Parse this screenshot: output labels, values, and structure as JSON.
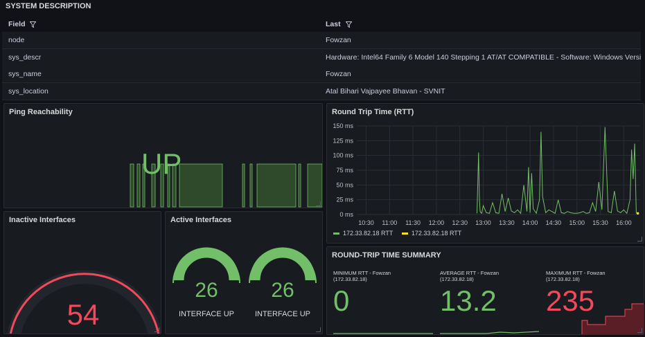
{
  "system": {
    "title": "SYSTEM DESCRIPTION",
    "col_field": "Field",
    "col_last": "Last",
    "rows": [
      {
        "field": "node",
        "last": "Fowzan"
      },
      {
        "field": "sys_descr",
        "last": "Hardware: Intel64 Family 6 Model 140 Stepping 1 AT/AT COMPATIBLE - Software: Windows Versi"
      },
      {
        "field": "sys_name",
        "last": "Fowzan"
      },
      {
        "field": "sys_location",
        "last": "Atal Bihari Vajpayee Bhavan - SVNIT"
      }
    ]
  },
  "ping": {
    "title": "Ping Reachability",
    "value": "UP",
    "color": "#73bf69"
  },
  "inactive": {
    "title": "Inactive Interfaces",
    "value": "54",
    "color": "#f2495c",
    "fraction": 0.98
  },
  "active": {
    "title": "Active Interfaces",
    "gauges": [
      {
        "value": "26",
        "label": "INTERFACE UP",
        "fraction": 1.0
      },
      {
        "value": "26",
        "label": "INTERFACE UP",
        "fraction": 1.0
      }
    ],
    "color": "#73bf69"
  },
  "rtt": {
    "title": "Round Trip Time (RTT)",
    "legend": [
      {
        "name": "172.33.82.18 RTT",
        "color": "#73bf69"
      },
      {
        "name": "172.33.82.18 RTT",
        "color": "#fade2a"
      }
    ]
  },
  "chart_data": {
    "type": "line",
    "ylim": [
      0,
      150
    ],
    "yticks": [
      "0 ms",
      "25 ms",
      "50 ms",
      "75 ms",
      "100 ms",
      "125 ms",
      "150 ms"
    ],
    "xticks": [
      "10:30",
      "11:00",
      "11:30",
      "12:00",
      "12:30",
      "13:00",
      "13:30",
      "14:00",
      "14:30",
      "15:00",
      "15:30",
      "16:00"
    ],
    "series": [
      {
        "name": "172.33.82.18 RTT",
        "x": [
          "12:52",
          "12:54",
          "12:55",
          "12:56",
          "12:57",
          "12:58",
          "13:00",
          "13:04",
          "13:08",
          "13:12",
          "13:16",
          "13:20",
          "13:24",
          "13:28",
          "13:32",
          "13:36",
          "13:40",
          "13:44",
          "13:48",
          "13:52",
          "13:56",
          "13:58",
          "14:00",
          "14:02",
          "14:04",
          "14:08",
          "14:12",
          "14:14",
          "14:16",
          "14:20",
          "14:24",
          "14:28",
          "14:32",
          "14:36",
          "14:40",
          "14:44",
          "14:48",
          "14:52",
          "14:56",
          "15:00",
          "15:04",
          "15:08",
          "15:12",
          "15:16",
          "15:20",
          "15:24",
          "15:28",
          "15:32",
          "15:36",
          "15:40",
          "15:44",
          "15:48",
          "15:52",
          "15:56",
          "16:00",
          "16:04",
          "16:08",
          "16:10",
          "16:12",
          "16:14",
          "16:16"
        ],
        "values": [
          2,
          105,
          30,
          5,
          3,
          2,
          15,
          3,
          2,
          20,
          3,
          2,
          35,
          5,
          28,
          6,
          3,
          8,
          2,
          50,
          5,
          80,
          3,
          70,
          10,
          2,
          25,
          140,
          30,
          3,
          8,
          5,
          2,
          25,
          3,
          2,
          5,
          3,
          2,
          2,
          3,
          5,
          2,
          3,
          20,
          5,
          55,
          8,
          148,
          5,
          3,
          40,
          6,
          3,
          8,
          2,
          25,
          110,
          60,
          120,
          2
        ]
      },
      {
        "name": "172.33.82.18 RTT",
        "x": [
          "16:18"
        ],
        "values": [
          2
        ]
      }
    ]
  },
  "summary": {
    "title": "ROUND-TRIP TIME SUMMARY",
    "stats": [
      {
        "label1": "MINIMUM RTT - Fowzan",
        "label2": "(172.33.82.18)",
        "value": "0",
        "color": "#73bf69"
      },
      {
        "label1": "AVERAGE RTT - Fowzan",
        "label2": "(172.33.82.18)",
        "value": "13.2",
        "color": "#73bf69"
      },
      {
        "label1": "MAXIMUM RTT - Fowzan",
        "label2": "(172.33.82.18)",
        "value": "235",
        "color": "#f2495c"
      }
    ]
  }
}
